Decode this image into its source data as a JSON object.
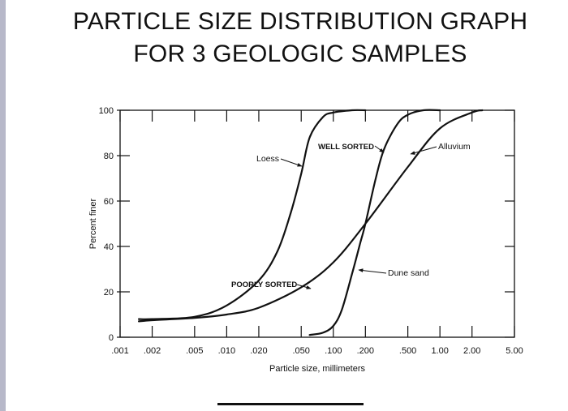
{
  "header": {
    "line1": "PARTICLE SIZE DISTRIBUTION GRAPH",
    "line2": "FOR 3 GEOLOGIC SAMPLES"
  },
  "chart_data": {
    "type": "line",
    "xlabel": "Particle size, millimeters",
    "ylabel": "Percent finer",
    "x_scale": "log",
    "xlim": [
      0.001,
      5.0
    ],
    "ylim": [
      0,
      100
    ],
    "x_ticks": [
      0.001,
      0.002,
      0.005,
      0.01,
      0.02,
      0.05,
      0.1,
      0.2,
      0.5,
      1.0,
      2.0,
      5.0
    ],
    "x_tick_labels": [
      ".001",
      ".002",
      ".005",
      ".010",
      ".020",
      ".050",
      ".100",
      ".200",
      ".500",
      "1.00",
      "2.00",
      "5.00"
    ],
    "y_ticks": [
      0,
      20,
      40,
      60,
      80,
      100
    ],
    "y_tick_labels": [
      "0",
      "20",
      "40",
      "60",
      "80",
      "100"
    ],
    "grid": false,
    "series": [
      {
        "name": "Loess",
        "x": [
          0.0015,
          0.002,
          0.005,
          0.01,
          0.02,
          0.03,
          0.04,
          0.05,
          0.06,
          0.08,
          0.1,
          0.15,
          0.2
        ],
        "y": [
          8,
          8,
          9,
          14,
          25,
          38,
          55,
          72,
          88,
          97,
          99,
          100,
          100
        ]
      },
      {
        "name": "Alluvium",
        "x": [
          0.0015,
          0.002,
          0.005,
          0.01,
          0.02,
          0.05,
          0.1,
          0.2,
          0.5,
          1.0,
          2.0,
          2.5
        ],
        "y": [
          7,
          7.5,
          8.5,
          10,
          13,
          22,
          33,
          50,
          75,
          92,
          99,
          100
        ]
      },
      {
        "name": "Dune sand",
        "x": [
          0.06,
          0.08,
          0.1,
          0.12,
          0.15,
          0.18,
          0.2,
          0.25,
          0.3,
          0.4,
          0.5,
          0.7,
          1.0
        ],
        "y": [
          1,
          2,
          5,
          12,
          28,
          42,
          50,
          70,
          83,
          94,
          98,
          100,
          100
        ]
      }
    ],
    "annotations": [
      {
        "text": "Loess",
        "style": "normal"
      },
      {
        "text": "WELL SORTED",
        "style": "bold"
      },
      {
        "text": "Alluvium",
        "style": "normal"
      },
      {
        "text": "Dune sand",
        "style": "normal"
      },
      {
        "text": "POORLY SORTED",
        "style": "bold"
      }
    ]
  }
}
